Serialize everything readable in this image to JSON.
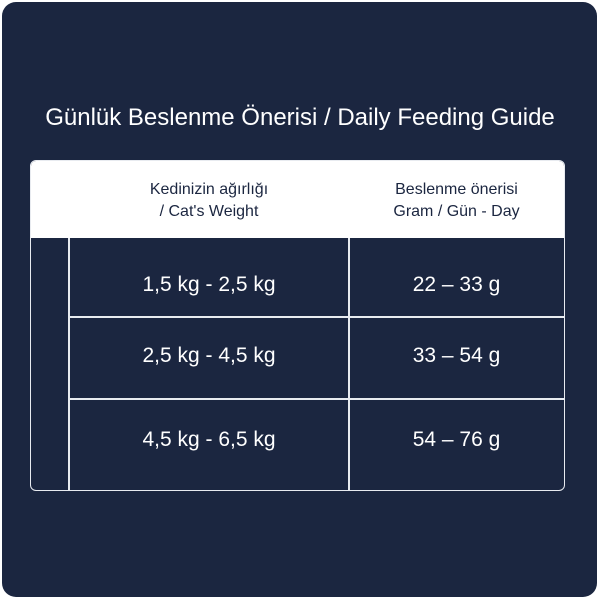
{
  "title": "Günlük Beslenme Önerisi / Daily Feeding Guide",
  "colors": {
    "background": "#1b2640",
    "header": "#ffffff",
    "lines": "#e8ebf0"
  },
  "table": {
    "headers": [
      {
        "line1": "Kedinizin ağırlığı",
        "line2": "/ Cat's Weight"
      },
      {
        "line1": "Beslenme önerisi",
        "line2": "Gram / Gün - Day"
      }
    ],
    "rows": [
      {
        "weight": "1,5 kg - 2,5 kg",
        "amount": "22 – 33 g"
      },
      {
        "weight": "2,5 kg - 4,5 kg",
        "amount": "33 – 54 g"
      },
      {
        "weight": "4,5 kg - 6,5 kg",
        "amount": "54 – 76 g"
      }
    ]
  }
}
